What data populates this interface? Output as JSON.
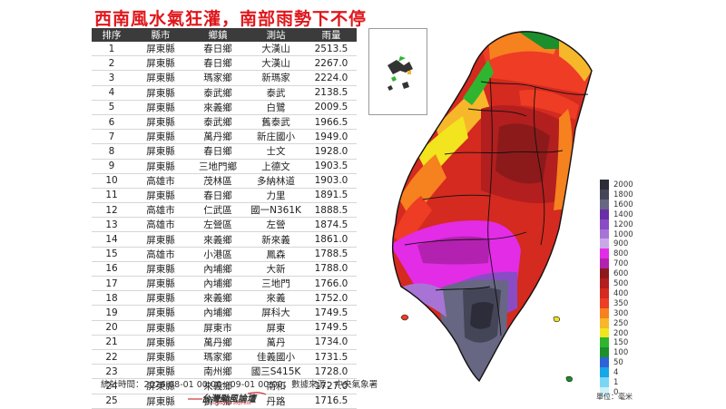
{
  "title": "西南風水氣狂灌，南部雨勢下不停",
  "table": {
    "headers": [
      "排序",
      "縣市",
      "鄉鎮",
      "測站",
      "雨量"
    ],
    "rows": [
      [
        "1",
        "屏東縣",
        "春日鄉",
        "大漢山",
        "2513.5"
      ],
      [
        "2",
        "屏東縣",
        "春日鄉",
        "大漢山",
        "2267.0"
      ],
      [
        "3",
        "屏東縣",
        "瑪家鄉",
        "新瑪家",
        "2224.0"
      ],
      [
        "4",
        "屏東縣",
        "泰武鄉",
        "泰武",
        "2138.5"
      ],
      [
        "5",
        "屏東縣",
        "來義鄉",
        "白鷺",
        "2009.5"
      ],
      [
        "6",
        "屏東縣",
        "泰武鄉",
        "舊泰武",
        "1966.5"
      ],
      [
        "7",
        "屏東縣",
        "萬丹鄉",
        "新庄國小",
        "1949.0"
      ],
      [
        "8",
        "屏東縣",
        "春日鄉",
        "士文",
        "1928.0"
      ],
      [
        "9",
        "屏東縣",
        "三地門鄉",
        "上德文",
        "1903.5"
      ],
      [
        "10",
        "高雄市",
        "茂林區",
        "多納林道",
        "1903.0"
      ],
      [
        "11",
        "屏東縣",
        "春日鄉",
        "力里",
        "1891.5"
      ],
      [
        "12",
        "高雄市",
        "仁武區",
        "國一N361K",
        "1888.5"
      ],
      [
        "13",
        "高雄市",
        "左營區",
        "左營",
        "1874.5"
      ],
      [
        "14",
        "屏東縣",
        "來義鄉",
        "新來義",
        "1861.0"
      ],
      [
        "15",
        "高雄市",
        "小港區",
        "鳳森",
        "1788.5"
      ],
      [
        "16",
        "屏東縣",
        "內埔鄉",
        "大新",
        "1788.0"
      ],
      [
        "17",
        "屏東縣",
        "內埔鄉",
        "三地門",
        "1766.0"
      ],
      [
        "18",
        "屏東縣",
        "來義鄉",
        "來義",
        "1752.0"
      ],
      [
        "19",
        "屏東縣",
        "內埔鄉",
        "屏科大",
        "1749.5"
      ],
      [
        "20",
        "屏東縣",
        "屏東市",
        "屏東",
        "1749.5"
      ],
      [
        "21",
        "屏東縣",
        "萬丹鄉",
        "萬丹",
        "1734.0"
      ],
      [
        "22",
        "屏東縣",
        "瑪家鄉",
        "佳義國小",
        "1731.5"
      ],
      [
        "23",
        "屏東縣",
        "南州鄉",
        "國三S415K",
        "1728.0"
      ],
      [
        "24",
        "屏東縣",
        "來義鄉",
        "南和",
        "1727.0"
      ],
      [
        "25",
        "屏東縣",
        "獅子鄉",
        "丹路",
        "1716.5"
      ]
    ]
  },
  "footer": "統計時間：2026-08-01 00:00～09-01 00:00；數據來源：中央氣象署",
  "logo": {
    "main": "台灣颱風論壇",
    "sub": "weather express"
  },
  "legend": {
    "unit_label": "單位：毫米",
    "levels": [
      {
        "label": "2000",
        "color": "#2d2d3a"
      },
      {
        "label": "1800",
        "color": "#454558"
      },
      {
        "label": "1600",
        "color": "#676783"
      },
      {
        "label": "1400",
        "color": "#6a2fa6"
      },
      {
        "label": "1200",
        "color": "#8a4cc4"
      },
      {
        "label": "1000",
        "color": "#a774d6"
      },
      {
        "label": "900",
        "color": "#c9a8e6"
      },
      {
        "label": "800",
        "color": "#e22ce6"
      },
      {
        "label": "700",
        "color": "#b321b0"
      },
      {
        "label": "600",
        "color": "#8c1a1a"
      },
      {
        "label": "500",
        "color": "#b31e1e"
      },
      {
        "label": "400",
        "color": "#d42a1f"
      },
      {
        "label": "350",
        "color": "#ee3d24"
      },
      {
        "label": "300",
        "color": "#f6811f"
      },
      {
        "label": "250",
        "color": "#f7b72a"
      },
      {
        "label": "200",
        "color": "#f2e41e"
      },
      {
        "label": "150",
        "color": "#2fb52f"
      },
      {
        "label": "100",
        "color": "#1b8f2b"
      },
      {
        "label": "50",
        "color": "#2f62d8"
      },
      {
        "label": "4",
        "color": "#17a6e6"
      },
      {
        "label": "1",
        "color": "#7ad6f2"
      },
      {
        "label": "0",
        "color": "#cfeff9"
      }
    ]
  }
}
